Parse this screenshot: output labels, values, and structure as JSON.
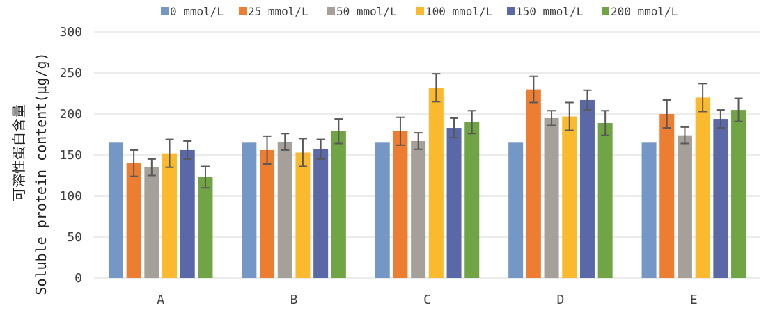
{
  "chart_data": {
    "type": "bar",
    "categories": [
      "A",
      "B",
      "C",
      "D",
      "E"
    ],
    "ylabel_cn": "可溶性蛋白含量",
    "ylabel_en": "Soluble protein content(μg/g)",
    "ylim": [
      0,
      300
    ],
    "yticks": [
      0,
      50,
      100,
      150,
      200,
      250,
      300
    ],
    "grid": true,
    "legend_position": "top",
    "series": [
      {
        "name": "0 mmol/L",
        "color": "#7497c6",
        "values": [
          165,
          165,
          165,
          165,
          165
        ],
        "errors": [
          null,
          null,
          null,
          null,
          null
        ]
      },
      {
        "name": "25 mmol/L",
        "color": "#ed7d31",
        "values": [
          140,
          156,
          179,
          230,
          200
        ],
        "errors": [
          16,
          17,
          17,
          16,
          17
        ]
      },
      {
        "name": "50 mmol/L",
        "color": "#a5a09a",
        "values": [
          135,
          166,
          167,
          195,
          174
        ],
        "errors": [
          10,
          10,
          10,
          9,
          10
        ]
      },
      {
        "name": "100 mmol/L",
        "color": "#fbb92d",
        "values": [
          152,
          153,
          232,
          197,
          220
        ],
        "errors": [
          17,
          17,
          17,
          17,
          17
        ]
      },
      {
        "name": "150 mmol/L",
        "color": "#5a68a8",
        "values": [
          156,
          157,
          183,
          217,
          194
        ],
        "errors": [
          11,
          12,
          12,
          12,
          11
        ]
      },
      {
        "name": "200 mmol/L",
        "color": "#70a444",
        "values": [
          123,
          179,
          190,
          189,
          205
        ],
        "errors": [
          13,
          15,
          14,
          15,
          14
        ]
      }
    ]
  }
}
